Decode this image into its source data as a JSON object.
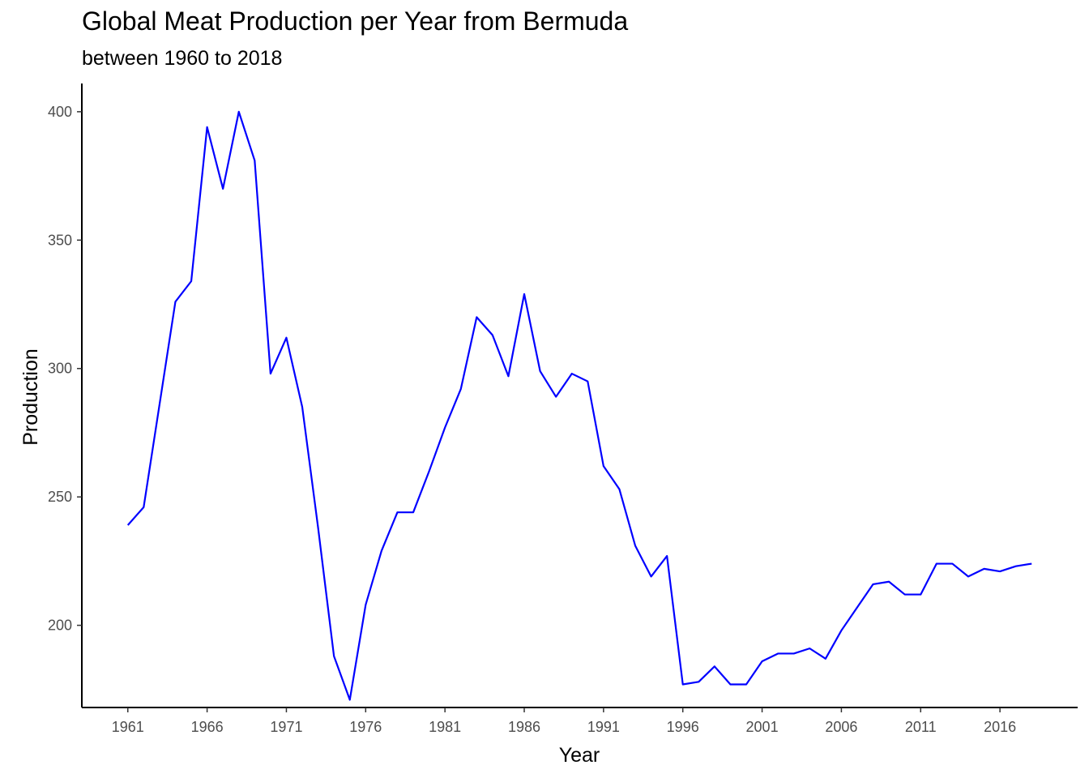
{
  "chart_data": {
    "type": "line",
    "title": "Global Meat Production per Year from Bermuda",
    "subtitle": "between 1960 to 2018",
    "xlabel": "Year",
    "ylabel": "Production",
    "xlim": [
      1958.1,
      2020.9
    ],
    "ylim": [
      168,
      411
    ],
    "x_ticks": [
      1961,
      1966,
      1971,
      1976,
      1981,
      1986,
      1991,
      1996,
      2001,
      2006,
      2011,
      2016
    ],
    "y_ticks": [
      200,
      250,
      300,
      350,
      400
    ],
    "grid": false,
    "line_color": "#0000ff",
    "series": [
      {
        "x": [
          1961,
          1962,
          1963,
          1964,
          1965,
          1966,
          1967,
          1968,
          1969,
          1970,
          1971,
          1972,
          1973,
          1974,
          1975,
          1976,
          1977,
          1978,
          1979,
          1980,
          1981,
          1982,
          1983,
          1984,
          1985,
          1986,
          1987,
          1988,
          1989,
          1990,
          1991,
          1992,
          1993,
          1994,
          1995,
          1996,
          1997,
          1998,
          1999,
          2000,
          2001,
          2002,
          2003,
          2004,
          2005,
          2006,
          2007,
          2008,
          2009,
          2010,
          2011,
          2012,
          2013,
          2014,
          2015,
          2016,
          2017,
          2018
        ],
        "values": [
          239,
          246,
          286,
          326,
          334,
          394,
          370,
          400,
          381,
          298,
          312,
          285,
          238,
          188,
          171,
          208,
          229,
          244,
          244,
          260,
          277,
          292,
          320,
          313,
          297,
          329,
          299,
          289,
          298,
          295,
          262,
          253,
          231,
          219,
          227,
          177,
          178,
          184,
          177,
          177,
          186,
          189,
          189,
          191,
          187,
          198,
          207,
          216,
          217,
          212,
          212,
          224,
          224,
          219,
          222,
          221,
          223,
          224
        ]
      }
    ]
  }
}
